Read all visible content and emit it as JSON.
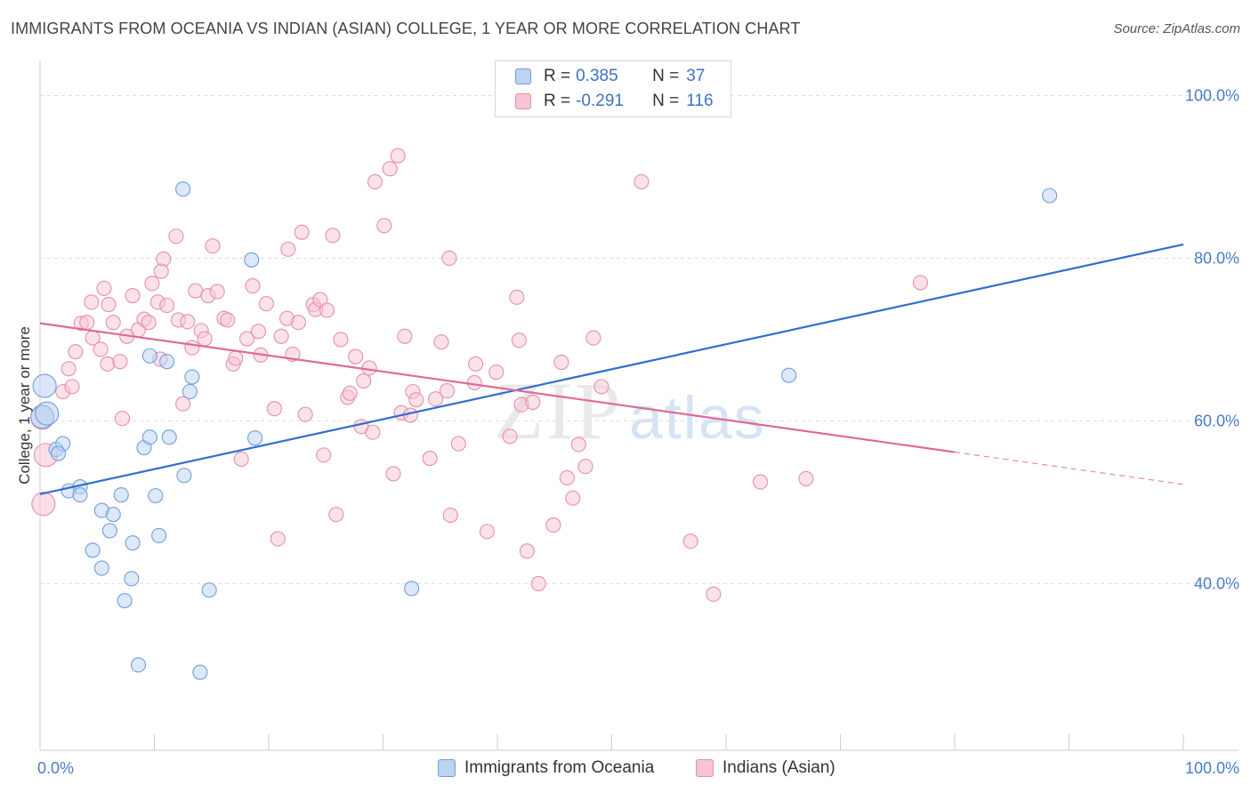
{
  "header": {
    "title": "IMMIGRANTS FROM OCEANIA VS INDIAN (ASIAN) COLLEGE, 1 YEAR OR MORE CORRELATION CHART",
    "source": "Source: ZipAtlas.com"
  },
  "watermark": "ZIPatlas",
  "legend": {
    "rows": [
      {
        "r_label": "R =",
        "r_value": "0.385",
        "n_label": "N =",
        "n_value": "37"
      },
      {
        "r_label": "R =",
        "r_value": "-0.291",
        "n_label": "N =",
        "n_value": "116"
      }
    ]
  },
  "colors": {
    "blue_fill": "#bcd3f2",
    "blue_stroke": "#6f9ee0",
    "blue_line": "#2f6fcf",
    "pink_fill": "#f7c5d4",
    "pink_stroke": "#e68fae",
    "pink_line": "#e06a95",
    "grid": "#dddddd",
    "tick_text": "#4a7cc9"
  },
  "chart_data": {
    "type": "scatter",
    "xlabel": "",
    "ylabel": "College, 1 year or more",
    "x_tick_labels": [
      {
        "value": 0,
        "label": "0.0%"
      },
      {
        "value": 100,
        "label": "100.0%"
      }
    ],
    "y_tick_labels": [
      {
        "value": 40,
        "label": "40.0%"
      },
      {
        "value": 60,
        "label": "60.0%"
      },
      {
        "value": 80,
        "label": "80.0%"
      },
      {
        "value": 100,
        "label": "100.0%"
      }
    ],
    "xlim": [
      0,
      100
    ],
    "ylim": [
      19.5,
      103
    ],
    "grid": true,
    "series": [
      {
        "name": "Immigrants from Oceania",
        "color": "blue",
        "trend": {
          "x": [
            0,
            100
          ],
          "y": [
            51.0,
            81.7
          ],
          "dashed_from": null
        },
        "points": [
          [
            0.2,
            60.5
          ],
          [
            0.6,
            60.9
          ],
          [
            0.4,
            64.3
          ],
          [
            1.4,
            56.5
          ],
          [
            2.0,
            57.2
          ],
          [
            1.6,
            56.0
          ],
          [
            2.5,
            51.4
          ],
          [
            3.5,
            51.9
          ],
          [
            3.5,
            50.9
          ],
          [
            5.4,
            49.0
          ],
          [
            6.4,
            48.5
          ],
          [
            7.1,
            50.9
          ],
          [
            6.1,
            46.5
          ],
          [
            4.6,
            44.1
          ],
          [
            5.4,
            41.9
          ],
          [
            8.1,
            45.0
          ],
          [
            10.1,
            50.8
          ],
          [
            10.4,
            45.9
          ],
          [
            8.0,
            40.6
          ],
          [
            7.4,
            37.9
          ],
          [
            9.1,
            56.7
          ],
          [
            9.6,
            68.0
          ],
          [
            9.6,
            58.0
          ],
          [
            11.1,
            67.3
          ],
          [
            11.3,
            58.0
          ],
          [
            12.6,
            53.3
          ],
          [
            13.1,
            63.6
          ],
          [
            13.3,
            65.4
          ],
          [
            14.8,
            39.2
          ],
          [
            14.0,
            29.1
          ],
          [
            8.6,
            30.0
          ],
          [
            12.5,
            88.5
          ],
          [
            18.5,
            79.8
          ],
          [
            18.8,
            57.9
          ],
          [
            32.5,
            39.4
          ],
          [
            65.5,
            65.6
          ],
          [
            88.3,
            87.7
          ]
        ]
      },
      {
        "name": "Indians (Asian)",
        "color": "pink",
        "trend": {
          "x": [
            0,
            100
          ],
          "y": [
            72.0,
            52.2
          ],
          "dashed_from": 80
        },
        "points": [
          [
            0.2,
            60.4
          ],
          [
            0.5,
            55.8
          ],
          [
            0.3,
            49.8
          ],
          [
            2.0,
            63.6
          ],
          [
            2.5,
            66.4
          ],
          [
            2.8,
            64.2
          ],
          [
            3.1,
            68.5
          ],
          [
            3.6,
            72.0
          ],
          [
            4.1,
            72.1
          ],
          [
            4.6,
            70.2
          ],
          [
            4.5,
            74.6
          ],
          [
            5.3,
            68.8
          ],
          [
            5.6,
            76.3
          ],
          [
            6.0,
            74.3
          ],
          [
            5.9,
            67.0
          ],
          [
            6.4,
            72.1
          ],
          [
            7.0,
            67.3
          ],
          [
            7.2,
            60.3
          ],
          [
            7.6,
            70.4
          ],
          [
            8.1,
            75.4
          ],
          [
            8.6,
            71.2
          ],
          [
            9.1,
            72.5
          ],
          [
            9.5,
            72.1
          ],
          [
            9.8,
            76.9
          ],
          [
            10.3,
            74.6
          ],
          [
            10.5,
            67.6
          ],
          [
            10.8,
            79.9
          ],
          [
            10.6,
            78.4
          ],
          [
            11.1,
            74.2
          ],
          [
            11.9,
            82.7
          ],
          [
            12.1,
            72.4
          ],
          [
            12.5,
            62.1
          ],
          [
            12.9,
            72.2
          ],
          [
            13.3,
            69.0
          ],
          [
            13.6,
            76.0
          ],
          [
            14.1,
            71.1
          ],
          [
            14.4,
            70.1
          ],
          [
            14.7,
            75.4
          ],
          [
            15.1,
            81.5
          ],
          [
            15.5,
            75.9
          ],
          [
            16.1,
            72.6
          ],
          [
            16.4,
            72.4
          ],
          [
            16.9,
            67.0
          ],
          [
            17.1,
            67.7
          ],
          [
            17.6,
            55.3
          ],
          [
            18.1,
            70.1
          ],
          [
            18.6,
            76.6
          ],
          [
            19.1,
            71.0
          ],
          [
            19.3,
            68.1
          ],
          [
            19.8,
            74.4
          ],
          [
            20.5,
            61.5
          ],
          [
            20.8,
            45.5
          ],
          [
            21.1,
            70.4
          ],
          [
            21.6,
            72.6
          ],
          [
            21.7,
            81.1
          ],
          [
            22.1,
            68.2
          ],
          [
            22.6,
            72.1
          ],
          [
            22.9,
            83.2
          ],
          [
            23.2,
            60.8
          ],
          [
            23.9,
            74.3
          ],
          [
            24.1,
            73.7
          ],
          [
            24.5,
            74.9
          ],
          [
            24.8,
            55.8
          ],
          [
            25.1,
            73.6
          ],
          [
            25.6,
            82.8
          ],
          [
            25.9,
            48.5
          ],
          [
            26.3,
            70.0
          ],
          [
            26.9,
            62.9
          ],
          [
            27.1,
            63.4
          ],
          [
            27.6,
            67.9
          ],
          [
            28.1,
            59.3
          ],
          [
            28.3,
            64.9
          ],
          [
            28.8,
            66.5
          ],
          [
            29.1,
            58.6
          ],
          [
            29.3,
            89.4
          ],
          [
            30.1,
            84.0
          ],
          [
            30.6,
            91.0
          ],
          [
            30.9,
            53.5
          ],
          [
            31.3,
            92.6
          ],
          [
            31.6,
            61.0
          ],
          [
            31.9,
            70.4
          ],
          [
            32.4,
            60.7
          ],
          [
            32.6,
            63.6
          ],
          [
            32.9,
            62.6
          ],
          [
            34.1,
            55.4
          ],
          [
            34.6,
            62.7
          ],
          [
            35.1,
            69.7
          ],
          [
            35.6,
            63.7
          ],
          [
            35.9,
            48.4
          ],
          [
            35.8,
            80.0
          ],
          [
            36.6,
            57.2
          ],
          [
            38.0,
            64.7
          ],
          [
            38.1,
            67.0
          ],
          [
            39.1,
            46.4
          ],
          [
            39.9,
            66.0
          ],
          [
            41.1,
            58.1
          ],
          [
            41.9,
            69.9
          ],
          [
            41.7,
            75.2
          ],
          [
            42.1,
            62.0
          ],
          [
            42.6,
            44.0
          ],
          [
            43.1,
            62.3
          ],
          [
            43.6,
            40.0
          ],
          [
            44.9,
            47.2
          ],
          [
            45.6,
            67.2
          ],
          [
            46.1,
            53.0
          ],
          [
            46.6,
            50.5
          ],
          [
            47.1,
            57.1
          ],
          [
            47.7,
            54.4
          ],
          [
            48.4,
            70.2
          ],
          [
            49.1,
            64.2
          ],
          [
            52.6,
            89.4
          ],
          [
            56.9,
            45.2
          ],
          [
            58.9,
            38.7
          ],
          [
            63.0,
            52.5
          ],
          [
            67.0,
            52.9
          ],
          [
            77.0,
            77.0
          ]
        ]
      }
    ]
  }
}
